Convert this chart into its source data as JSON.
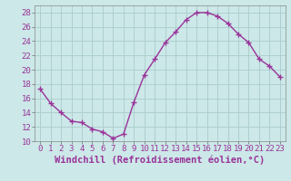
{
  "x": [
    0,
    1,
    2,
    3,
    4,
    5,
    6,
    7,
    8,
    9,
    10,
    11,
    12,
    13,
    14,
    15,
    16,
    17,
    18,
    19,
    20,
    21,
    22,
    23
  ],
  "y": [
    17.3,
    15.3,
    14.0,
    12.8,
    12.6,
    11.7,
    11.3,
    10.4,
    11.0,
    15.5,
    19.3,
    21.5,
    23.8,
    25.3,
    27.0,
    28.0,
    28.0,
    27.5,
    26.5,
    25.0,
    23.8,
    21.5,
    20.5,
    19.0
  ],
  "line_color": "#993399",
  "marker": "+",
  "marker_size": 4,
  "bg_color": "#cce8e8",
  "grid_color": "#aacccc",
  "xlabel": "Windchill (Refroidissement éolien,°C)",
  "xlim": [
    -0.5,
    23.5
  ],
  "ylim": [
    10,
    29
  ],
  "yticks": [
    10,
    12,
    14,
    16,
    18,
    20,
    22,
    24,
    26,
    28
  ],
  "xticks": [
    0,
    1,
    2,
    3,
    4,
    5,
    6,
    7,
    8,
    9,
    10,
    11,
    12,
    13,
    14,
    15,
    16,
    17,
    18,
    19,
    20,
    21,
    22,
    23
  ],
  "xlabel_fontsize": 7.5,
  "tick_fontsize": 6.5,
  "line_width": 1.0
}
